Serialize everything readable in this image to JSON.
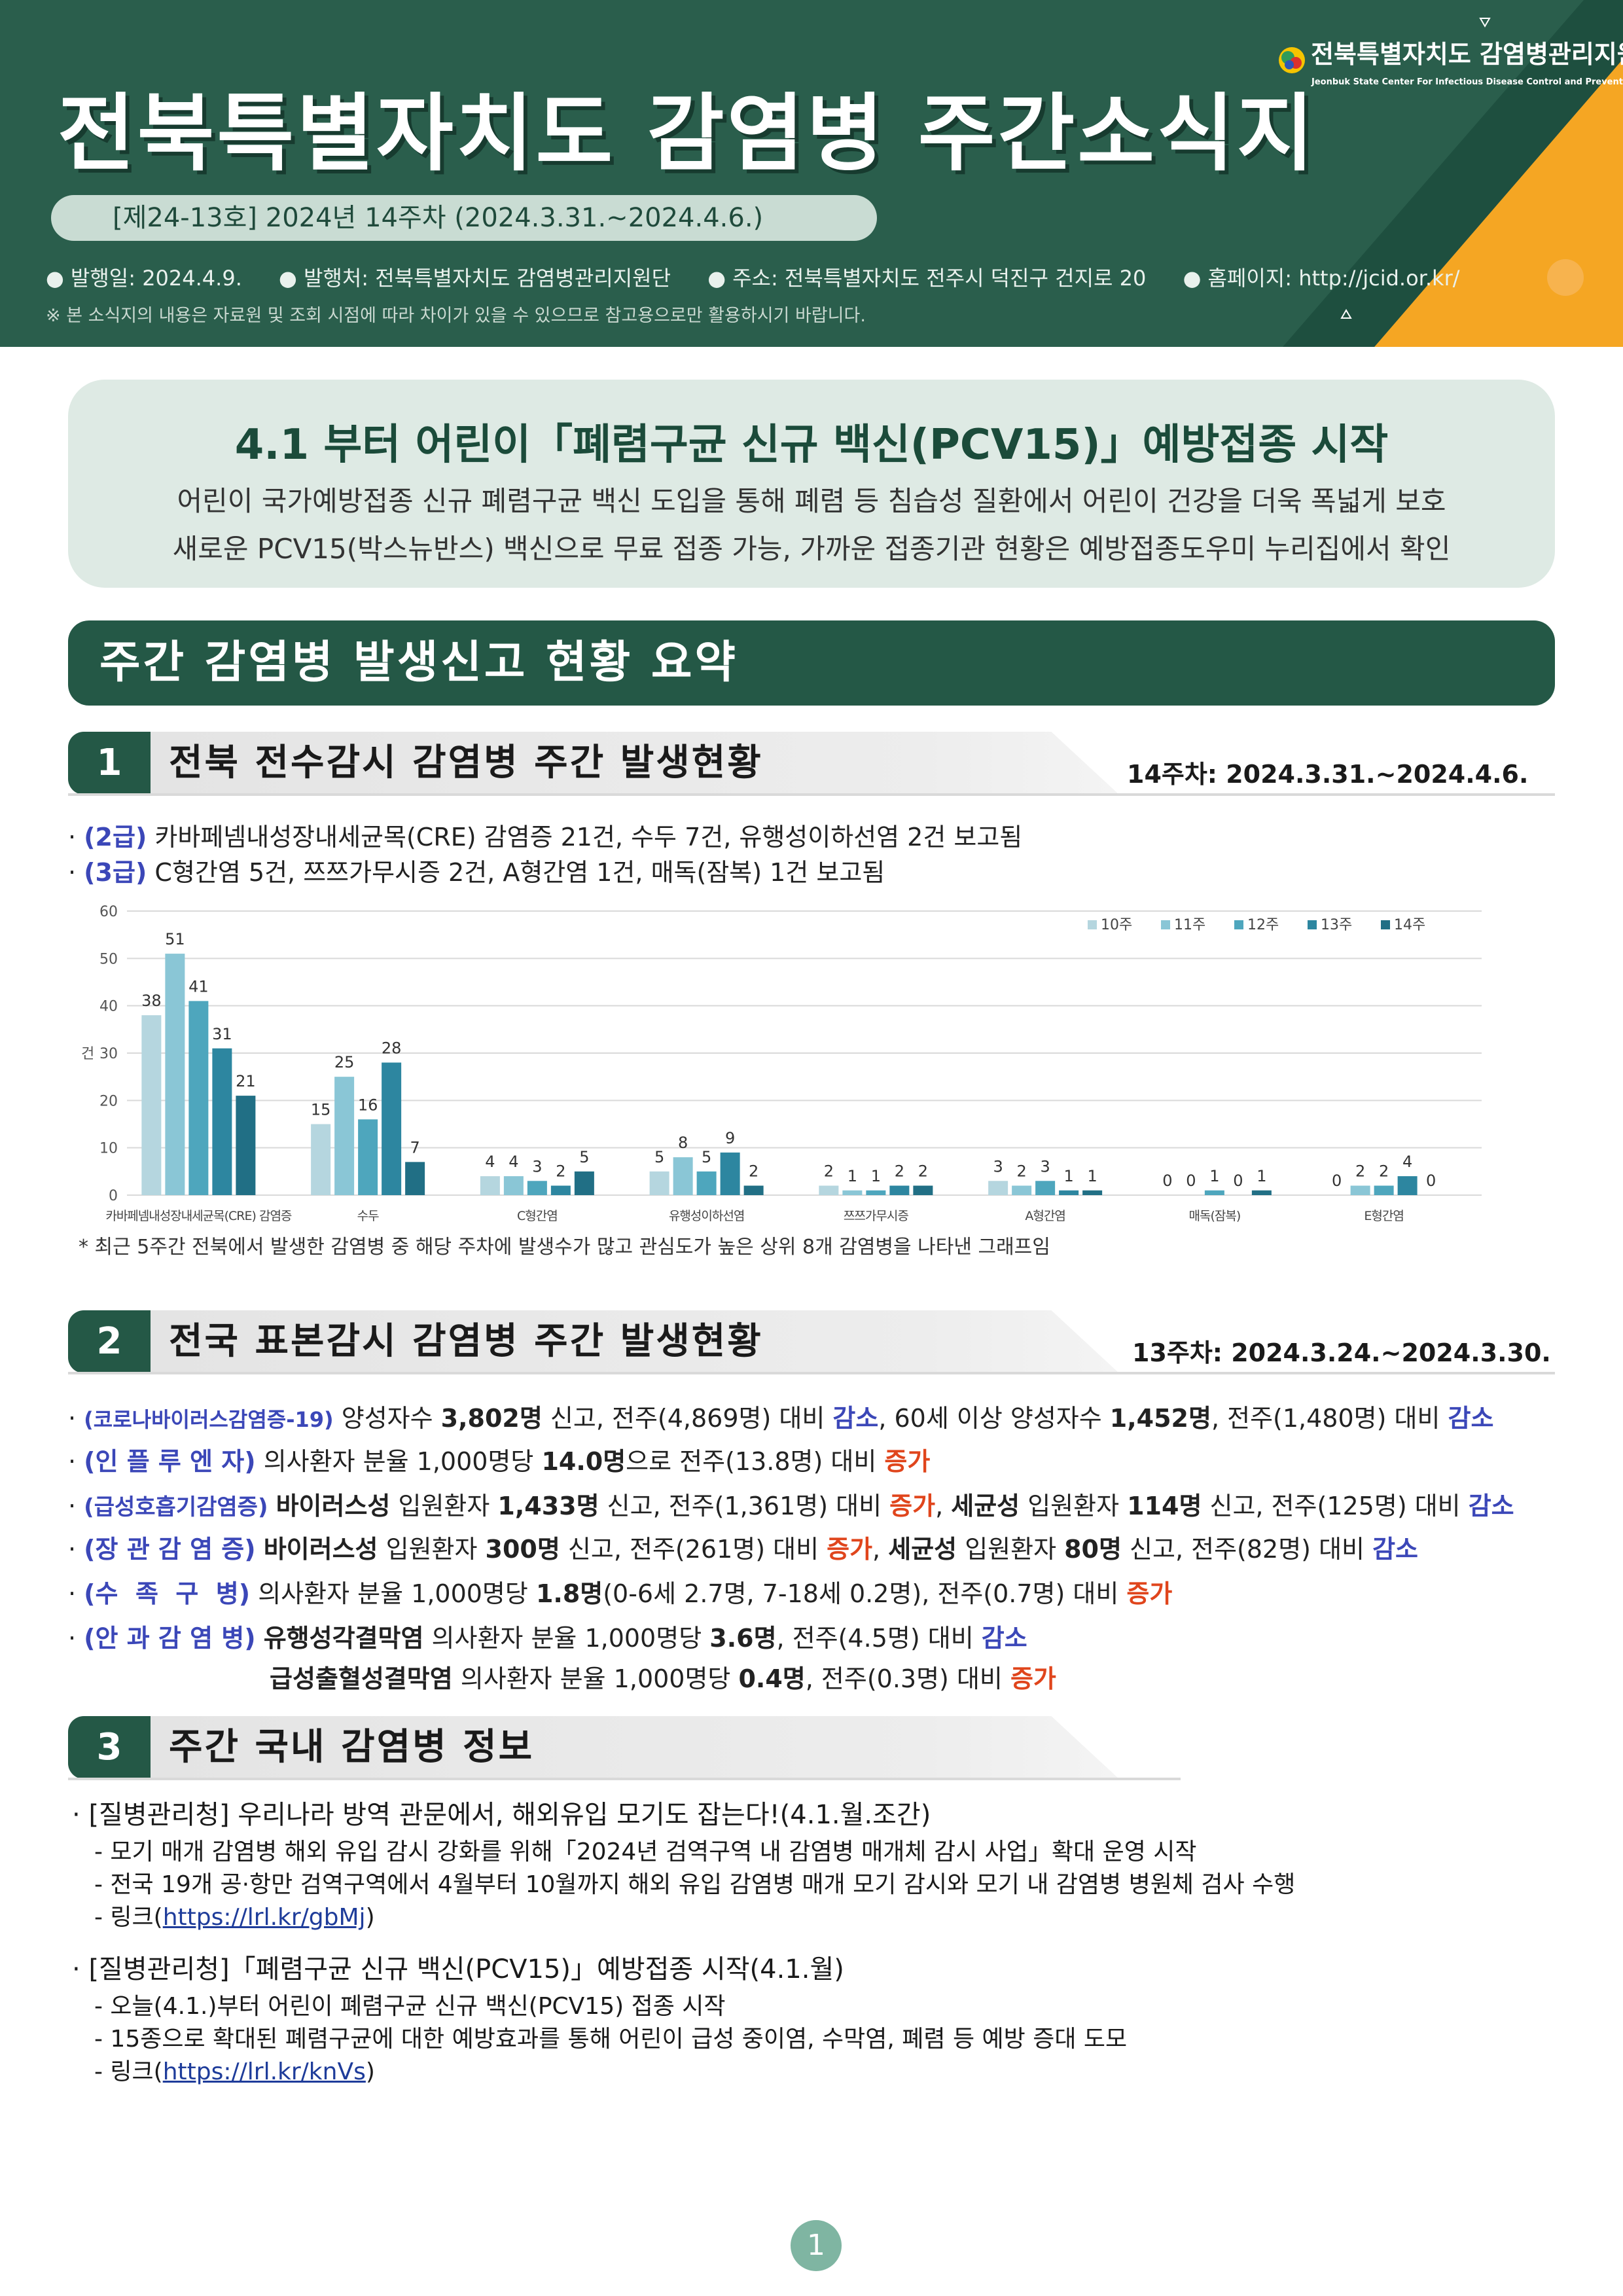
{
  "header": {
    "title": "전북특별자치도  감염병  주간소식지",
    "issue": "[제24-13호] 2024년 14주차 (2024.3.31.~2024.4.6.)",
    "publish_date": "발행일: 2024.4.9.",
    "publisher": "발행처: 전북특별자치도 감염병관리지원단",
    "address": "주소: 전북특별자치도 전주시 덕진구 건지로 20",
    "homepage": "홈페이지: http://jcid.or.kr/",
    "note": "※ 본 소식지의 내용은 자료원 및 조회 시점에 따라 차이가 있을 수 있으므로 참고용으로만 활용하시기 바랍니다.",
    "logo_ko": "전북특별자치도 감염병관리지원단",
    "logo_en": "Jeonbuk State Center For Infectious Disease Control and Prevention"
  },
  "headline": {
    "title": "4.1 부터 어린이「폐렴구균 신규 백신(PCV15)」예방접종 시작",
    "line1": "어린이 국가예방접종 신규 폐렴구균 백신 도입을 통해 폐렴 등 침습성 질환에서 어린이 건강을 더욱 폭넓게 보호",
    "line2": "새로운 PCV15(박스뉴반스) 백신으로 무료 접종 가능, 가까운 접종기관 현황은 예방접종도우미 누리집에서 확인"
  },
  "summary_title": "주간 감염병 발생신고 현황 요약",
  "section1": {
    "num": "1",
    "title": "전북 전수감시 감염병 주간 발생현황",
    "week": "14주차: 2024.3.31.~2024.4.6.",
    "b1_grade": "(2급)",
    "b1_text": "카바페넴내성장내세균목(CRE) 감염증 21건, 수두 7건, 유행성이하선염 2건 보고됨",
    "b2_grade": "(3급)",
    "b2_text": "C형간염 5건, 쯔쯔가무시증 2건, A형간염 1건, 매독(잠복) 1건 보고됨",
    "chart_note": "* 최근 5주간 전북에서 발생한 감염병 중 해당 주차에 발생수가 많고 관심도가 높은 상위 8개 감염병을 나타낸 그래프임"
  },
  "chart_data": {
    "type": "bar",
    "ylabel": "건",
    "ylim": [
      0,
      60
    ],
    "yticks": [
      0,
      10,
      20,
      30,
      40,
      50,
      60
    ],
    "categories": [
      "카바페넴내성장내세균목(CRE) 감염증",
      "수두",
      "C형간염",
      "유행성이하선염",
      "쯔쯔가무시증",
      "A형간염",
      "매독(잠복)",
      "E형간염"
    ],
    "series": [
      {
        "name": "10주",
        "color": "#b5d6df",
        "values": [
          38,
          15,
          4,
          5,
          2,
          3,
          0,
          0
        ]
      },
      {
        "name": "11주",
        "color": "#8ac6d6",
        "values": [
          51,
          25,
          4,
          8,
          1,
          2,
          0,
          2
        ]
      },
      {
        "name": "12주",
        "color": "#4ea6bd",
        "values": [
          41,
          16,
          3,
          5,
          1,
          3,
          1,
          2
        ]
      },
      {
        "name": "13주",
        "color": "#2d86a0",
        "values": [
          31,
          28,
          2,
          9,
          2,
          1,
          0,
          4
        ]
      },
      {
        "name": "14주",
        "color": "#216f85",
        "values": [
          21,
          7,
          5,
          2,
          2,
          1,
          1,
          0
        ]
      }
    ],
    "legend_position": "top-right",
    "grid": true
  },
  "section2": {
    "num": "2",
    "title": "전국 표본감시 감염병 주간 발생현황",
    "week": "13주차: 2024.3.24.~2024.3.30.",
    "r1": {
      "label": "(코로나바이러스감염증-19)",
      "t1": "양성자수 ",
      "b1": "3,802명",
      "t2": " 신고, 전주(4,869명) 대비 ",
      "c1": "감소",
      "t3": ", 60세 이상 양성자수 ",
      "b2": "1,452명",
      "t4": ", 전주(1,480명) 대비 ",
      "c2": "감소"
    },
    "r2": {
      "label": "(인 플 루 엔 자)",
      "t1": "의사환자 분율 1,000명당 ",
      "b1": "14.0명",
      "t2": "으로 전주(13.8명) 대비 ",
      "c1": "증가"
    },
    "r3": {
      "label": "(급성호흡기감염증)",
      "b0": "바이러스성",
      "t1": " 입원환자 ",
      "b1": "1,433명",
      "t2": " 신고, 전주(1,361명) 대비 ",
      "c1": "증가",
      "t3": ", ",
      "b2": "세균성",
      "t4": " 입원환자 ",
      "b3": "114명",
      "t5": " 신고, 전주(125명) 대비 ",
      "c2": "감소"
    },
    "r4": {
      "label": "(장 관 감 염 증)",
      "b0": "바이러스성",
      "t1": " 입원환자 ",
      "b1": "300명",
      "t2": " 신고, 전주(261명) 대비 ",
      "c1": "증가",
      "t3": ", ",
      "b2": "세균성",
      "t4": " 입원환자 ",
      "b3": "80명",
      "t5": " 신고, 전주(82명) 대비 ",
      "c2": "감소"
    },
    "r5": {
      "label": "(수  족  구  병)",
      "t1": "의사환자 분율 1,000명당 ",
      "b1": "1.8명",
      "t2": "(0-6세 2.7명, 7-18세 0.2명), 전주(0.7명) 대비 ",
      "c1": "증가"
    },
    "r6": {
      "label": "(안 과 감 염 병)",
      "b0": "유행성각결막염",
      "t1": " 의사환자 분율 1,000명당 ",
      "b1": "3.6명",
      "t2": ", 전주(4.5명) 대비 ",
      "c1": "감소"
    },
    "r7": {
      "b0": "급성출혈성결막염",
      "t1": " 의사환자 분율 1,000명당 ",
      "b1": "0.4명",
      "t2": ", 전주(0.3명) 대비 ",
      "c1": "증가"
    }
  },
  "section3": {
    "num": "3",
    "title": "주간 국내 감염병 정보",
    "n1_title": "[질병관리청] 우리나라 방역 관문에서, 해외유입 모기도 잡는다!(4.1.월.조간)",
    "n1_d1": "- 모기 매개 감염병 해외 유입 감시 강화를 위해「2024년 검역구역 내 감염병 매개체 감시 사업」확대 운영 시작",
    "n1_d2": "- 전국 19개 공·항만 검역구역에서 4월부터 10월까지 해외 유입 감염병 매개 모기 감시와 모기 내 감염병 병원체 검사 수행",
    "n1_link_pre": "- 링크(",
    "n1_link": "https://lrl.kr/gbMj",
    "n1_link_post": ")",
    "n2_title": "[질병관리청]「폐렴구균 신규 백신(PCV15)」예방접종 시작(4.1.월)",
    "n2_d1": "- 오늘(4.1.)부터 어린이 폐렴구균 신규 백신(PCV15) 접종 시작",
    "n2_d2": "- 15종으로 확대된 폐렴구균에 대한 예방효과를 통해 어린이 급성 중이염, 수막염, 폐렴 등 예방 증대 도모",
    "n2_link_pre": "- 링크(",
    "n2_link": "https://lrl.kr/knVs",
    "n2_link_post": ")"
  },
  "page_number": "1"
}
